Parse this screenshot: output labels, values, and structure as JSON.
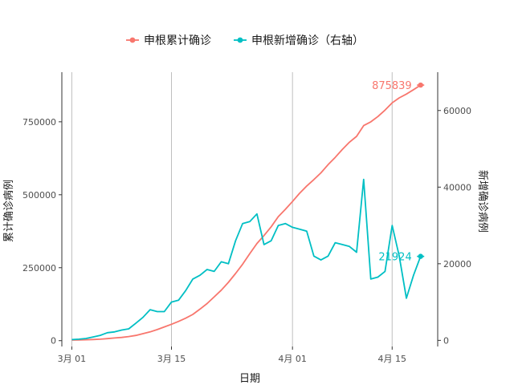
{
  "chart_data": {
    "type": "line",
    "xlabel": "日期",
    "ylabel_left": "累计确诊病例",
    "ylabel_right": "新增确诊病例",
    "legend_position": "top",
    "grid": "vertical-major-only",
    "x_ticks": [
      {
        "label": "3月 01",
        "day": 0
      },
      {
        "label": "3月 15",
        "day": 14
      },
      {
        "label": "4月 01",
        "day": 31
      },
      {
        "label": "4月 15",
        "day": 45
      }
    ],
    "y_left": {
      "lim": [
        -20000,
        920000
      ],
      "ticks": [
        0,
        250000,
        500000,
        750000
      ],
      "tick_labels": [
        "0",
        "250000",
        "500000",
        "750000"
      ]
    },
    "y_right": {
      "lim": [
        -1600,
        70000
      ],
      "ticks": [
        0,
        20000,
        40000,
        60000
      ],
      "tick_labels": [
        "0",
        "20000",
        "40000",
        "60000"
      ]
    },
    "series": [
      {
        "name": "申根累计确诊",
        "axis": "left",
        "color": "#F8766D",
        "days": [
          0,
          1,
          2,
          3,
          4,
          5,
          6,
          7,
          8,
          9,
          10,
          11,
          12,
          13,
          14,
          15,
          16,
          17,
          18,
          19,
          20,
          21,
          22,
          23,
          24,
          25,
          26,
          27,
          28,
          29,
          30,
          31,
          32,
          33,
          34,
          35,
          36,
          37,
          38,
          39,
          40,
          41,
          42,
          43,
          44,
          45,
          46,
          47,
          48,
          49
        ],
        "values": [
          2000,
          2500,
          3000,
          4000,
          5000,
          7000,
          9000,
          11000,
          14000,
          18000,
          24000,
          30000,
          38000,
          47000,
          56000,
          66000,
          77000,
          90000,
          108000,
          127000,
          150000,
          173000,
          200000,
          230000,
          262000,
          298000,
          333000,
          360000,
          390000,
          425000,
          450000,
          477000,
          505000,
          530000,
          552000,
          575000,
          603000,
          628000,
          655000,
          680000,
          700000,
          737000,
          750000,
          768000,
          790000,
          815000,
          832000,
          845000,
          860000,
          875839
        ],
        "end_label": "875839",
        "end_day": 49
      },
      {
        "name": "申根新增确诊（右轴）",
        "axis": "right",
        "color": "#00BFC4",
        "days": [
          0,
          1,
          2,
          3,
          4,
          5,
          6,
          7,
          8,
          9,
          10,
          11,
          12,
          13,
          14,
          15,
          16,
          17,
          18,
          19,
          20,
          21,
          22,
          23,
          24,
          25,
          26,
          27,
          28,
          29,
          30,
          31,
          32,
          33,
          34,
          35,
          36,
          37,
          38,
          39,
          40,
          41,
          42,
          43,
          44,
          45,
          46,
          47,
          48,
          49
        ],
        "values": [
          200,
          300,
          500,
          900,
          1300,
          2000,
          2200,
          2700,
          3000,
          4500,
          6000,
          8000,
          7500,
          7500,
          10000,
          10500,
          13000,
          16000,
          17000,
          18500,
          18000,
          20500,
          20000,
          26000,
          30500,
          31000,
          33000,
          25000,
          26000,
          30000,
          30500,
          29500,
          29000,
          28500,
          22000,
          21000,
          22000,
          25500,
          25000,
          24500,
          23000,
          42000,
          16000,
          16500,
          18000,
          30000,
          22000,
          11000,
          17000,
          21924
        ],
        "end_label": "21924",
        "end_day": 49
      }
    ]
  }
}
